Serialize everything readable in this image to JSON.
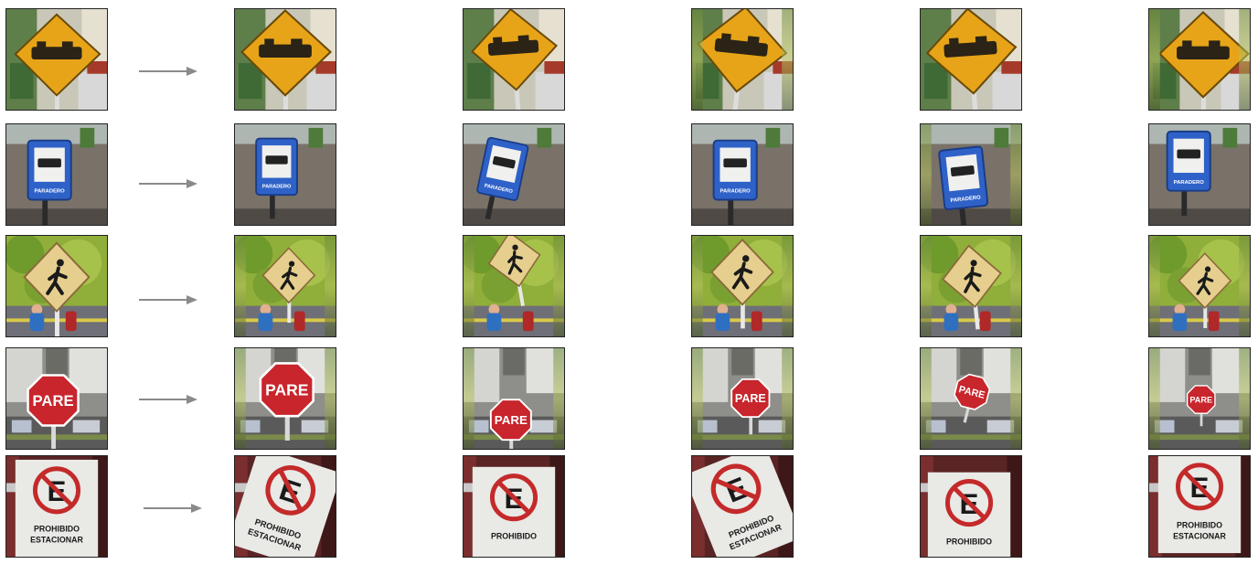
{
  "rows": [
    {
      "sign": "warning-diamond",
      "label": ""
    },
    {
      "sign": "bus-stop",
      "label": "PARADERO"
    },
    {
      "sign": "pedestrian",
      "label": ""
    },
    {
      "sign": "stop",
      "label": "PARE"
    },
    {
      "sign": "no-parking",
      "label": "PROHIBIDO ESTACIONAR",
      "label_short": "PROHIBIDO"
    }
  ],
  "arrow_color": "#8a8a8a"
}
